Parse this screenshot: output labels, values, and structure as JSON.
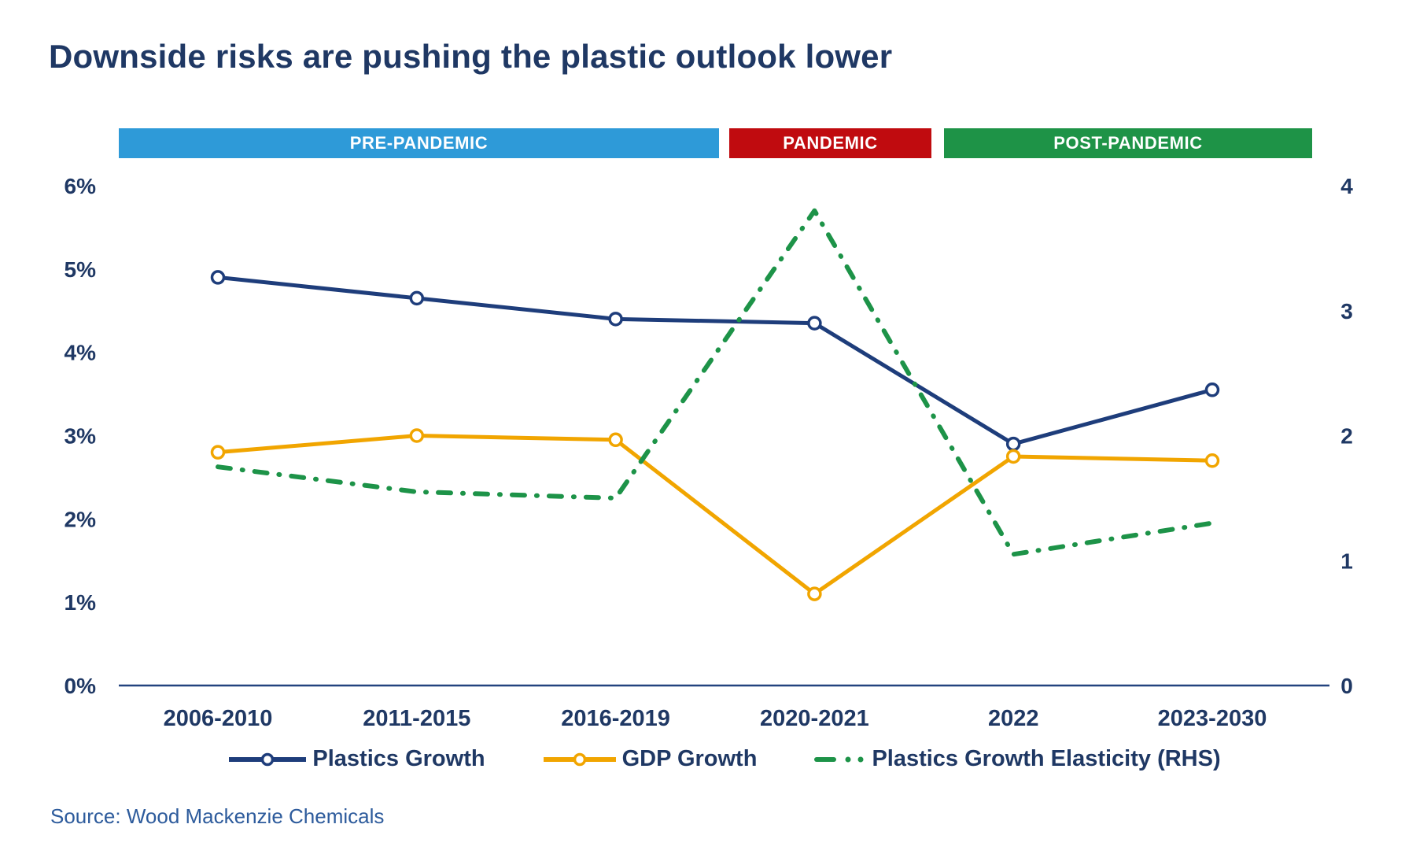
{
  "header": {
    "title": "Downside risks are pushing the plastic outlook lower"
  },
  "source": {
    "text": "Source: Wood Mackenzie Chemicals"
  },
  "colors": {
    "navy_text": "#1f3864",
    "axis_line": "#23437f",
    "source_blue": "#2d5b9c",
    "banner_text": "#ffffff"
  },
  "chart_data": {
    "type": "line",
    "title": "Downside risks are pushing the plastic outlook lower",
    "categories": [
      "2006-2010",
      "2011-2015",
      "2016-2019",
      "2020-2021",
      "2022",
      "2023-2030"
    ],
    "series": [
      {
        "name": "Plastics Growth",
        "axis": "left",
        "color": "#1e3d7b",
        "marker": "circle-open",
        "style": "solid",
        "values": [
          4.9,
          4.65,
          4.4,
          4.35,
          2.9,
          3.55
        ]
      },
      {
        "name": "GDP Growth",
        "axis": "left",
        "color": "#f1a500",
        "marker": "circle-open",
        "style": "solid",
        "values": [
          2.8,
          3.0,
          2.95,
          1.1,
          2.75,
          2.7
        ]
      },
      {
        "name": "Plastics Growth Elasticity (RHS)",
        "axis": "right",
        "color": "#1d9348",
        "marker": "none",
        "style": "dash-dot",
        "values": [
          1.75,
          1.55,
          1.5,
          3.8,
          1.05,
          1.3
        ]
      }
    ],
    "left_axis": {
      "min": 0,
      "max": 6,
      "ticks": [
        "0%",
        "1%",
        "2%",
        "3%",
        "4%",
        "5%",
        "6%"
      ]
    },
    "right_axis": {
      "min": 0,
      "max": 4,
      "ticks": [
        "0",
        "1",
        "2",
        "3",
        "4"
      ]
    },
    "bands": [
      {
        "label": "PRE-PANDEMIC",
        "color": "#2e9ad8",
        "span": [
          "2006-2010",
          "2016-2019"
        ]
      },
      {
        "label": "PANDEMIC",
        "color": "#c00b0f",
        "span": [
          "2020-2021",
          "2020-2021"
        ]
      },
      {
        "label": "POST-PANDEMIC",
        "color": "#1e9347",
        "span": [
          "2022",
          "2023-2030"
        ]
      }
    ],
    "legend_position": "bottom",
    "grid": false
  }
}
